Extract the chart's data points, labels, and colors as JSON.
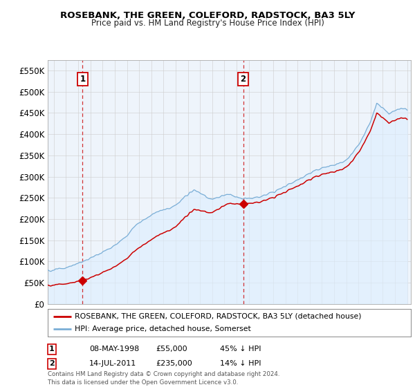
{
  "title": "ROSEBANK, THE GREEN, COLEFORD, RADSTOCK, BA3 5LY",
  "subtitle": "Price paid vs. HM Land Registry's House Price Index (HPI)",
  "ylim": [
    0,
    575000
  ],
  "yticks": [
    0,
    50000,
    100000,
    150000,
    200000,
    250000,
    300000,
    350000,
    400000,
    450000,
    500000,
    550000
  ],
  "ytick_labels": [
    "£0",
    "£50K",
    "£100K",
    "£150K",
    "£200K",
    "£250K",
    "£300K",
    "£350K",
    "£400K",
    "£450K",
    "£500K",
    "£550K"
  ],
  "sale1_date": 1998.36,
  "sale1_price": 55000,
  "sale1_label": "1",
  "sale2_date": 2011.54,
  "sale2_price": 235000,
  "sale2_label": "2",
  "line_color_property": "#cc0000",
  "line_color_hpi": "#7aaed6",
  "dashed_color": "#cc0000",
  "fill_color_hpi": "#ddeeff",
  "legend_property": "ROSEBANK, THE GREEN, COLEFORD, RADSTOCK, BA3 5LY (detached house)",
  "legend_hpi": "HPI: Average price, detached house, Somerset",
  "table_row1": [
    "1",
    "08-MAY-1998",
    "£55,000",
    "45% ↓ HPI"
  ],
  "table_row2": [
    "2",
    "14-JUL-2011",
    "£235,000",
    "14% ↓ HPI"
  ],
  "footnote": "Contains HM Land Registry data © Crown copyright and database right 2024.\nThis data is licensed under the Open Government Licence v3.0.",
  "background_color": "#ffffff",
  "grid_color": "#cccccc",
  "xlim_start": 1995.5,
  "xlim_end": 2025.3
}
